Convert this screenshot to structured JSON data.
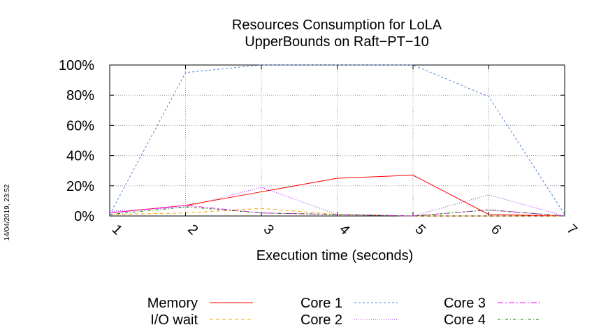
{
  "chart_data": {
    "type": "line",
    "title_lines": [
      "Resources Consumption for LoLA",
      "UpperBounds on Raft−PT−10"
    ],
    "xlabel": "Execution time (seconds)",
    "ylabel": "",
    "x": [
      1,
      2,
      3,
      4,
      5,
      6,
      7
    ],
    "xlim": [
      1,
      7
    ],
    "ylim": [
      0,
      100
    ],
    "yticks": [
      "0%",
      "20%",
      "40%",
      "60%",
      "80%",
      "100%"
    ],
    "xticks": [
      "1",
      "2",
      "3",
      "4",
      "5",
      "6",
      "7"
    ],
    "grid": true,
    "legend_position": "bottom",
    "series": [
      {
        "name": "Memory",
        "color": "#ff0000",
        "dash": "",
        "values": [
          2,
          7,
          16,
          25,
          27,
          1,
          0
        ]
      },
      {
        "name": "I/O wait",
        "color": "#ffa500",
        "dash": "5,4",
        "values": [
          1,
          2,
          5,
          1,
          0,
          0,
          0
        ]
      },
      {
        "name": "Core 1",
        "color": "#4f7fdf",
        "dash": "3,3",
        "values": [
          1,
          95,
          100,
          100,
          100,
          79,
          1
        ]
      },
      {
        "name": "Core 2",
        "color": "#a020f0",
        "dash": "1,2",
        "values": [
          3,
          6,
          19,
          1,
          0,
          14,
          0
        ]
      },
      {
        "name": "Core 3",
        "color": "#ff00ff",
        "dash": "8,3,2,3",
        "values": [
          2,
          7,
          2,
          1,
          0,
          4,
          0
        ]
      },
      {
        "name": "Core 4",
        "color": "#008000",
        "dash": "4,3,1,3",
        "values": [
          1,
          6,
          2,
          1,
          0,
          4,
          0
        ]
      }
    ]
  },
  "timestamp": "14/04/2019, 23:52"
}
